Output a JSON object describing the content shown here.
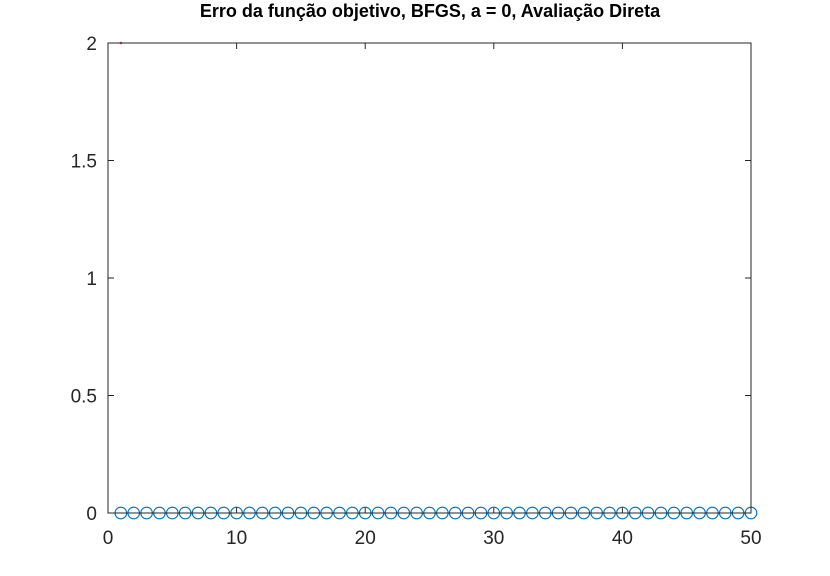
{
  "chart_data": {
    "type": "scatter",
    "title": "Erro da função objetivo, BFGS, a = 0, Avaliação Direta",
    "xlabel": "",
    "ylabel": "",
    "xlim": [
      0,
      50
    ],
    "ylim": [
      0,
      2
    ],
    "x_ticks": [
      0,
      10,
      20,
      30,
      40,
      50
    ],
    "y_ticks": [
      0,
      0.5,
      1,
      1.5,
      2
    ],
    "x_tick_labels": [
      "0",
      "10",
      "20",
      "30",
      "40",
      "50"
    ],
    "y_tick_labels": [
      "0",
      "0.5",
      "1",
      "1.5",
      "2"
    ],
    "grid": false,
    "series": [
      {
        "marker": "circle",
        "color": "#0072BD",
        "x": [
          1,
          2,
          3,
          4,
          5,
          6,
          7,
          8,
          9,
          10,
          11,
          12,
          13,
          14,
          15,
          16,
          17,
          18,
          19,
          20,
          21,
          22,
          23,
          24,
          25,
          26,
          27,
          28,
          29,
          30,
          31,
          32,
          33,
          34,
          35,
          36,
          37,
          38,
          39,
          40,
          41,
          42,
          43,
          44,
          45,
          46,
          47,
          48,
          49,
          50
        ],
        "y": [
          0,
          0,
          0,
          0,
          0,
          0,
          0,
          0,
          0,
          0,
          0,
          0,
          0,
          0,
          0,
          0,
          0,
          0,
          0,
          0,
          0,
          0,
          0,
          0,
          0,
          0,
          0,
          0,
          0,
          0,
          0,
          0,
          0,
          0,
          0,
          0,
          0,
          0,
          0,
          0,
          0,
          0,
          0,
          0,
          0,
          0,
          0,
          0,
          0,
          0
        ]
      },
      {
        "marker": "dot",
        "color": "#D95319",
        "x": [
          1
        ],
        "y": [
          2
        ]
      }
    ]
  }
}
